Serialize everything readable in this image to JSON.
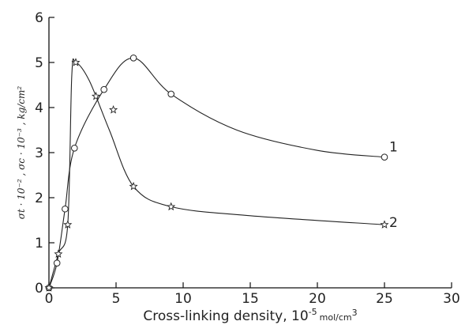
{
  "chart_data": {
    "type": "scatter",
    "title": "",
    "xlabel": "Cross-linking density, 10",
    "xlabel_exp": "-5",
    "xlabel_unit": "mol/cm",
    "xlabel_unit_exp": "3",
    "ylabel": "σt · 10⁻² ,  σc · 10⁻³ ,  kg/cm²",
    "xlim": [
      0,
      30
    ],
    "ylim": [
      0,
      6
    ],
    "xticks": [
      0,
      5,
      10,
      15,
      20,
      25,
      30
    ],
    "yticks": [
      0,
      1,
      2,
      3,
      4,
      5,
      6
    ],
    "grid": false,
    "series": [
      {
        "name": "1",
        "marker": "circle",
        "x": [
          0,
          0.6,
          1.2,
          1.9,
          4.1,
          6.3,
          9.1,
          25
        ],
        "y": [
          0,
          0.55,
          1.75,
          3.1,
          4.4,
          5.1,
          4.3,
          2.9
        ],
        "curve": [
          [
            0,
            0
          ],
          [
            0.6,
            0.55
          ],
          [
            1.2,
            1.75
          ],
          [
            1.9,
            3.1
          ],
          [
            4.1,
            4.4
          ],
          [
            6.3,
            5.1
          ],
          [
            9.1,
            4.3
          ],
          [
            14,
            3.5
          ],
          [
            20,
            3.05
          ],
          [
            25,
            2.9
          ]
        ]
      },
      {
        "name": "2",
        "marker": "star",
        "x": [
          0,
          0.7,
          1.4,
          2.0,
          3.5,
          4.8,
          6.3,
          9.1,
          25
        ],
        "y": [
          0,
          0.75,
          1.4,
          5.0,
          4.25,
          3.95,
          2.25,
          1.8,
          1.4
        ],
        "curve": [
          [
            0,
            0
          ],
          [
            0.7,
            0.75
          ],
          [
            1.4,
            1.4
          ],
          [
            1.7,
            4.7
          ],
          [
            2.0,
            5.0
          ],
          [
            3.0,
            4.6
          ],
          [
            4.5,
            3.5
          ],
          [
            6.3,
            2.25
          ],
          [
            9.1,
            1.8
          ],
          [
            15,
            1.6
          ],
          [
            25,
            1.4
          ]
        ]
      }
    ]
  }
}
